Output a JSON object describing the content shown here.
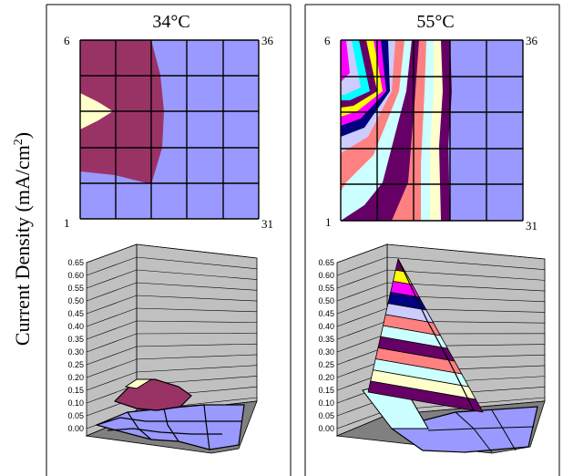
{
  "ylabel": "Current Density (mA/cm",
  "ylabel_sup": "2",
  "ylabel_end": ")",
  "colors": {
    "background_blue": "#9999FF",
    "maroon": "#993366",
    "cream": "#FFFFCC",
    "light_cyan": "#CCFFFF",
    "purple_dark": "#660066",
    "salmon": "#FF8080",
    "navy": "#000080",
    "magenta": "#FF00FF",
    "yellow": "#FFFF00",
    "cyan": "#00FFFF",
    "wall_gray": "#C0C0C0",
    "floor_dark": "#808080"
  },
  "chart_data": [
    {
      "type": "heatmap",
      "title": "34°C",
      "corner_labels": {
        "top_left": "6",
        "top_right": "36",
        "bottom_left": "1",
        "bottom_right": "31"
      },
      "grid": {
        "rows": 5,
        "cols": 5
      },
      "bands": [
        {
          "range": "0.05-0.10",
          "color": "#993366"
        },
        {
          "range": "0.10-0.15",
          "color": "#FFFFCC"
        }
      ],
      "background_range": "0.00-0.05"
    },
    {
      "type": "heatmap",
      "title": "55°C",
      "corner_labels": {
        "top_left": "6",
        "top_right": "36",
        "bottom_left": "1",
        "bottom_right": "31"
      },
      "grid": {
        "rows": 5,
        "cols": 5
      },
      "bands": "0.05 mA/cm2 steps from 0.00 to 0.65"
    },
    {
      "type": "area",
      "subtype": "3d-surface",
      "ylim": [
        0,
        0.65
      ],
      "yticks": [
        "0.00",
        "0.05",
        "0.10",
        "0.15",
        "0.20",
        "0.25",
        "0.30",
        "0.35",
        "0.40",
        "0.45",
        "0.50",
        "0.55",
        "0.60",
        "0.65"
      ],
      "peak_value": 0.12
    },
    {
      "type": "area",
      "subtype": "3d-surface",
      "ylim": [
        0,
        0.65
      ],
      "yticks": [
        "0.00",
        "0.05",
        "0.10",
        "0.15",
        "0.20",
        "0.25",
        "0.30",
        "0.35",
        "0.40",
        "0.45",
        "0.50",
        "0.55",
        "0.60",
        "0.65"
      ],
      "peak_value": 0.65
    }
  ]
}
